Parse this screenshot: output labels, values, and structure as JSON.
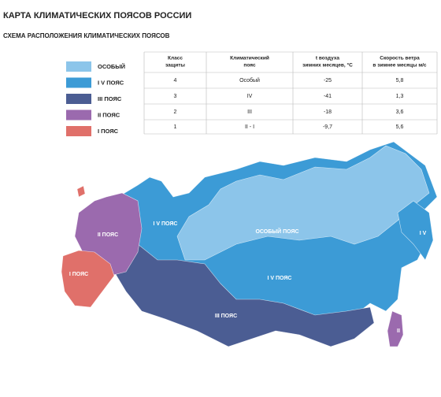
{
  "header": {
    "title": "КАРТА КЛИМАТИЧЕСКИХ ПОЯСОВ РОССИИ",
    "subtitle": "СХЕМА РАСПОЛОЖЕНИЯ КЛИМАТИЧЕСКИХ ПОЯСОВ"
  },
  "legend": [
    {
      "label": "ОСОБЫЙ",
      "color": "#8cc5ea"
    },
    {
      "label": "I V ПОЯС",
      "color": "#3c9bd6"
    },
    {
      "label": "III ПОЯС",
      "color": "#4b5d93"
    },
    {
      "label": "II ПОЯС",
      "color": "#9b6aae"
    },
    {
      "label": "I ПОЯС",
      "color": "#e0706a"
    }
  ],
  "table": {
    "headers": [
      [
        "Класс",
        "защиты"
      ],
      [
        "Климатический",
        "пояс"
      ],
      [
        "t воздуха",
        "зимних месяцев, °С"
      ],
      [
        "Скорость ветра",
        "в зимнее месяцы м/с"
      ]
    ],
    "rows": [
      [
        "4",
        "Особый",
        "-25",
        "5,8"
      ],
      [
        "3",
        "IV",
        "-41",
        "1,3"
      ],
      [
        "2",
        "III",
        "-18",
        "3,6"
      ],
      [
        "1",
        "II - I",
        "-9,7",
        "5,6"
      ]
    ]
  },
  "map_labels": [
    {
      "text": "I V ПОЯС",
      "zone": 1
    },
    {
      "text": "II ПОЯС",
      "zone": 3
    },
    {
      "text": "ОСОБЫЙ ПОЯС",
      "zone": 0
    },
    {
      "text": "I V ПОЯС",
      "zone": 1
    },
    {
      "text": "III ПОЯС",
      "zone": 2
    },
    {
      "text": "I ПОЯС",
      "zone": 4
    },
    {
      "text": "I V",
      "zone": 1
    },
    {
      "text": "II",
      "zone": 3
    }
  ]
}
